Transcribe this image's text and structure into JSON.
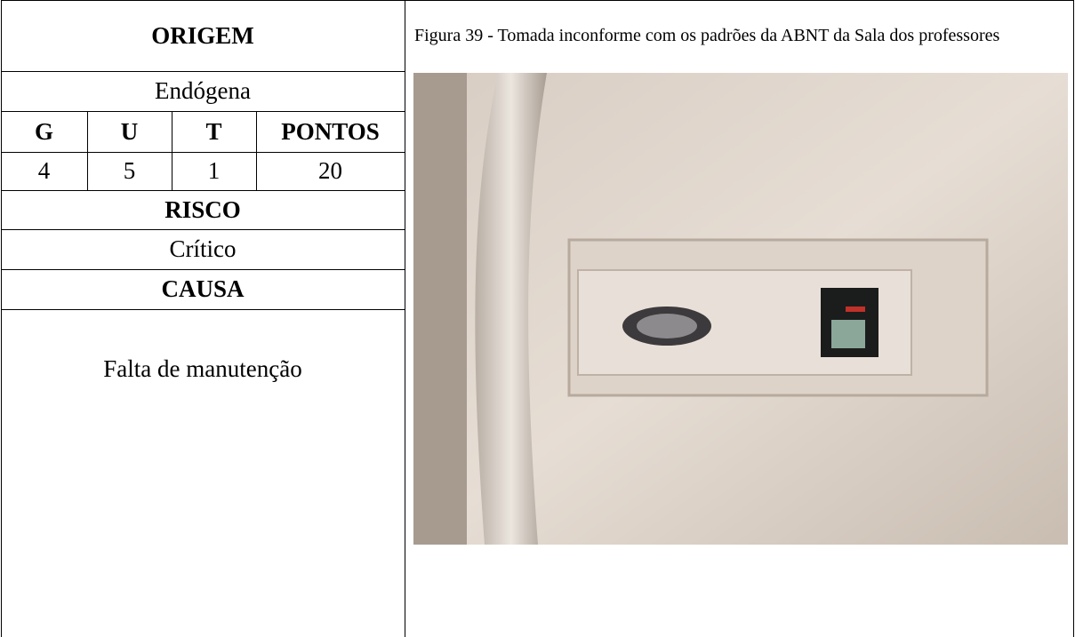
{
  "table": {
    "header": "ORIGEM",
    "origin": "Endógena",
    "columns": [
      "G",
      "U",
      "T",
      "PONTOS"
    ],
    "scores": [
      4,
      5,
      1,
      20
    ],
    "risk_header": "RISCO",
    "risk": "Crítico",
    "cause_header": "CAUSA",
    "cause": "Falta de manutenção"
  },
  "figure": {
    "caption": "Figura 39 - Tomada inconforme com os padrões da ABNT da Sala dos professores"
  }
}
